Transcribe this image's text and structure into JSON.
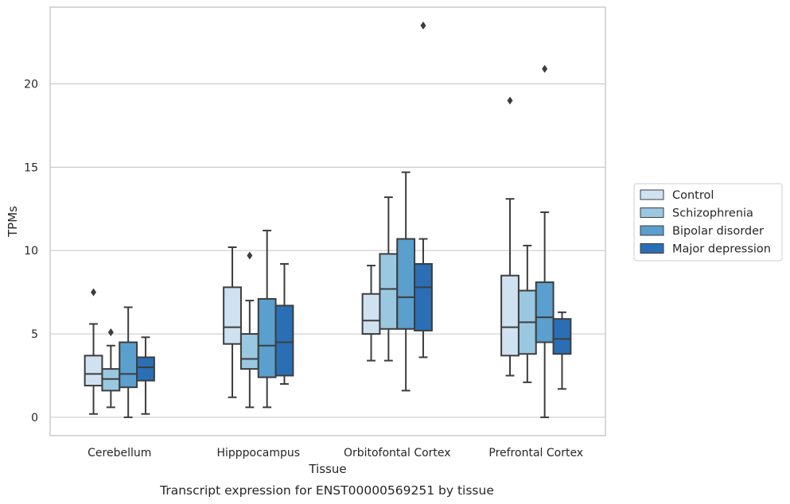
{
  "chart_data": {
    "type": "boxplot",
    "title": "",
    "caption": "Transcript expression for ENST00000569251 by tissue",
    "xlabel": "Tissue",
    "ylabel": "TPMs",
    "ylim": [
      -1.1,
      24.6
    ],
    "yticks": [
      0,
      5,
      10,
      15,
      20
    ],
    "grid": "horizontal",
    "legend_position": "right",
    "categories": [
      "Cerebellum",
      "Hipppocampus",
      "Orbitofontal Cortex",
      "Prefrontal Cortex"
    ],
    "series": [
      {
        "name": "Control",
        "color": "#d0e1f2",
        "boxes": [
          {
            "whisker_low": 0.2,
            "q1": 1.9,
            "median": 2.6,
            "q3": 3.7,
            "whisker_high": 5.6,
            "outliers": [
              7.5
            ]
          },
          {
            "whisker_low": 1.2,
            "q1": 4.4,
            "median": 5.4,
            "q3": 7.8,
            "whisker_high": 10.2,
            "outliers": []
          },
          {
            "whisker_low": 3.4,
            "q1": 5.0,
            "median": 5.8,
            "q3": 7.4,
            "whisker_high": 9.1,
            "outliers": []
          },
          {
            "whisker_low": 2.5,
            "q1": 3.7,
            "median": 5.4,
            "q3": 8.5,
            "whisker_high": 13.1,
            "outliers": [
              19.0
            ]
          }
        ]
      },
      {
        "name": "Schizophrenia",
        "color": "#9ac8e0",
        "boxes": [
          {
            "whisker_low": 0.6,
            "q1": 1.6,
            "median": 2.3,
            "q3": 2.9,
            "whisker_high": 4.3,
            "outliers": [
              5.1
            ]
          },
          {
            "whisker_low": 0.6,
            "q1": 2.9,
            "median": 3.5,
            "q3": 5.0,
            "whisker_high": 7.0,
            "outliers": [
              9.7
            ]
          },
          {
            "whisker_low": 3.4,
            "q1": 5.3,
            "median": 7.7,
            "q3": 9.8,
            "whisker_high": 13.2,
            "outliers": []
          },
          {
            "whisker_low": 2.1,
            "q1": 3.8,
            "median": 5.7,
            "q3": 7.6,
            "whisker_high": 10.3,
            "outliers": []
          }
        ]
      },
      {
        "name": "Bipolar disorder",
        "color": "#5a9fcd",
        "boxes": [
          {
            "whisker_low": 0.0,
            "q1": 1.8,
            "median": 2.6,
            "q3": 4.5,
            "whisker_high": 6.6,
            "outliers": []
          },
          {
            "whisker_low": 0.6,
            "q1": 2.4,
            "median": 4.3,
            "q3": 7.1,
            "whisker_high": 11.2,
            "outliers": []
          },
          {
            "whisker_low": 1.6,
            "q1": 5.3,
            "median": 7.2,
            "q3": 10.7,
            "whisker_high": 14.7,
            "outliers": []
          },
          {
            "whisker_low": 0.0,
            "q1": 4.5,
            "median": 6.0,
            "q3": 8.1,
            "whisker_high": 12.3,
            "outliers": [
              20.9
            ]
          }
        ]
      },
      {
        "name": "Major depression",
        "color": "#2a6fb5",
        "boxes": [
          {
            "whisker_low": 0.2,
            "q1": 2.2,
            "median": 3.0,
            "q3": 3.6,
            "whisker_high": 4.8,
            "outliers": []
          },
          {
            "whisker_low": 2.0,
            "q1": 2.5,
            "median": 4.5,
            "q3": 6.7,
            "whisker_high": 9.2,
            "outliers": []
          },
          {
            "whisker_low": 3.6,
            "q1": 5.2,
            "median": 7.8,
            "q3": 9.2,
            "whisker_high": 10.7,
            "outliers": [
              23.5
            ]
          },
          {
            "whisker_low": 1.7,
            "q1": 3.8,
            "median": 4.7,
            "q3": 5.9,
            "whisker_high": 6.3,
            "outliers": []
          }
        ]
      }
    ]
  }
}
